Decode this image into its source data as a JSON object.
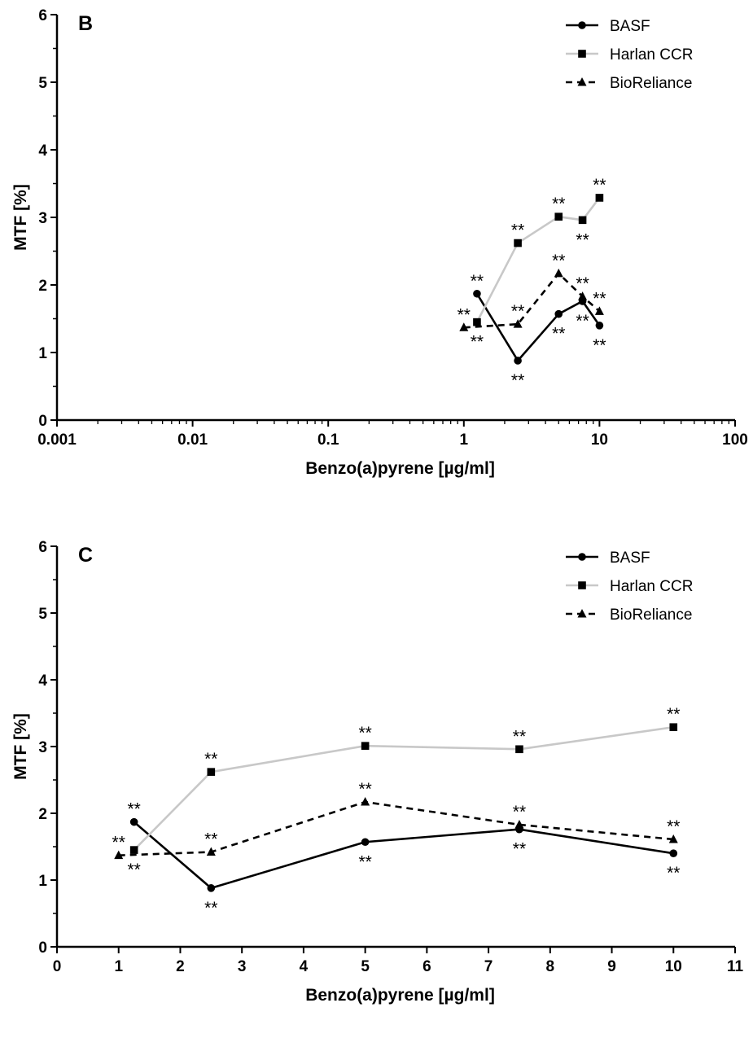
{
  "chart_data": [
    {
      "type": "line",
      "panel_label": "B",
      "xscale": "log",
      "xlim": [
        0.001,
        100
      ],
      "ylim": [
        0,
        6
      ],
      "xticks": [
        0.001,
        0.01,
        0.1,
        1,
        10,
        100
      ],
      "xtick_labels": [
        "0.001",
        "0.01",
        "0.1",
        "1",
        "10",
        "100"
      ],
      "yticks": [
        0,
        1,
        2,
        3,
        4,
        5,
        6
      ],
      "ytick_labels": [
        "0",
        "1",
        "2",
        "3",
        "4",
        "5",
        "6"
      ],
      "xlabel": "Benzo(a)pyrene [µg/ml]",
      "ylabel": "MTF [%]",
      "grid": false,
      "legend_position": "top-right",
      "series": [
        {
          "name": "BASF",
          "color": "#000000",
          "line": "solid",
          "marker": "circle",
          "x": [
            1.25,
            2.5,
            5,
            7.5,
            10
          ],
          "y": [
            1.87,
            0.88,
            1.57,
            1.76,
            1.4
          ],
          "labels": [
            "**",
            "**",
            "**",
            "**",
            "**"
          ],
          "label_side": [
            "above",
            "below",
            "below",
            "below",
            "below"
          ]
        },
        {
          "name": "Harlan CCR",
          "color": "#c8c8c8",
          "line": "solid",
          "marker": "square",
          "x": [
            1.25,
            2.5,
            5,
            7.5,
            10
          ],
          "y": [
            1.45,
            2.62,
            3.01,
            2.96,
            3.29
          ],
          "labels": [
            "**",
            "**",
            "**",
            "**",
            "**"
          ],
          "label_side": [
            "below",
            "above",
            "above",
            "below",
            "above"
          ]
        },
        {
          "name": "BioReliance",
          "color": "#000000",
          "line": "dashed",
          "marker": "triangle",
          "x": [
            1,
            2.5,
            5,
            7.5,
            10
          ],
          "y": [
            1.37,
            1.42,
            2.17,
            1.83,
            1.61
          ],
          "labels": [
            "**",
            "**",
            "**",
            "**",
            "**"
          ],
          "label_side": [
            "above",
            "above",
            "above",
            "above",
            "above"
          ]
        }
      ]
    },
    {
      "type": "line",
      "panel_label": "C",
      "xscale": "linear",
      "xlim": [
        0,
        11
      ],
      "ylim": [
        0,
        6
      ],
      "xticks": [
        0,
        1,
        2,
        3,
        4,
        5,
        6,
        7,
        8,
        9,
        10,
        11
      ],
      "xtick_labels": [
        "0",
        "1",
        "2",
        "3",
        "4",
        "5",
        "6",
        "7",
        "8",
        "9",
        "10",
        "11"
      ],
      "yticks": [
        0,
        1,
        2,
        3,
        4,
        5,
        6
      ],
      "ytick_labels": [
        "0",
        "1",
        "2",
        "3",
        "4",
        "5",
        "6"
      ],
      "xlabel": "Benzo(a)pyrene [µg/ml]",
      "ylabel": "MTF [%]",
      "grid": false,
      "legend_position": "top-right",
      "series": [
        {
          "name": "BASF",
          "color": "#000000",
          "line": "solid",
          "marker": "circle",
          "x": [
            1.25,
            2.5,
            5,
            7.5,
            10
          ],
          "y": [
            1.87,
            0.88,
            1.57,
            1.76,
            1.4
          ],
          "labels": [
            "**",
            "**",
            "**",
            "**",
            "**"
          ],
          "label_side": [
            "above",
            "below",
            "below",
            "below",
            "below"
          ]
        },
        {
          "name": "Harlan CCR",
          "color": "#c8c8c8",
          "line": "solid",
          "marker": "square",
          "x": [
            1.25,
            2.5,
            5,
            7.5,
            10
          ],
          "y": [
            1.45,
            2.62,
            3.01,
            2.96,
            3.29
          ],
          "labels": [
            "**",
            "**",
            "**",
            "**",
            "**"
          ],
          "label_side": [
            "below",
            "above",
            "above",
            "above",
            "above"
          ]
        },
        {
          "name": "BioReliance",
          "color": "#000000",
          "line": "dashed",
          "marker": "triangle",
          "x": [
            1,
            2.5,
            5,
            7.5,
            10
          ],
          "y": [
            1.37,
            1.42,
            2.17,
            1.83,
            1.61
          ],
          "labels": [
            "**",
            "**",
            "**",
            "**",
            "**"
          ],
          "label_side": [
            "above",
            "above",
            "above",
            "above",
            "above"
          ]
        }
      ]
    }
  ]
}
